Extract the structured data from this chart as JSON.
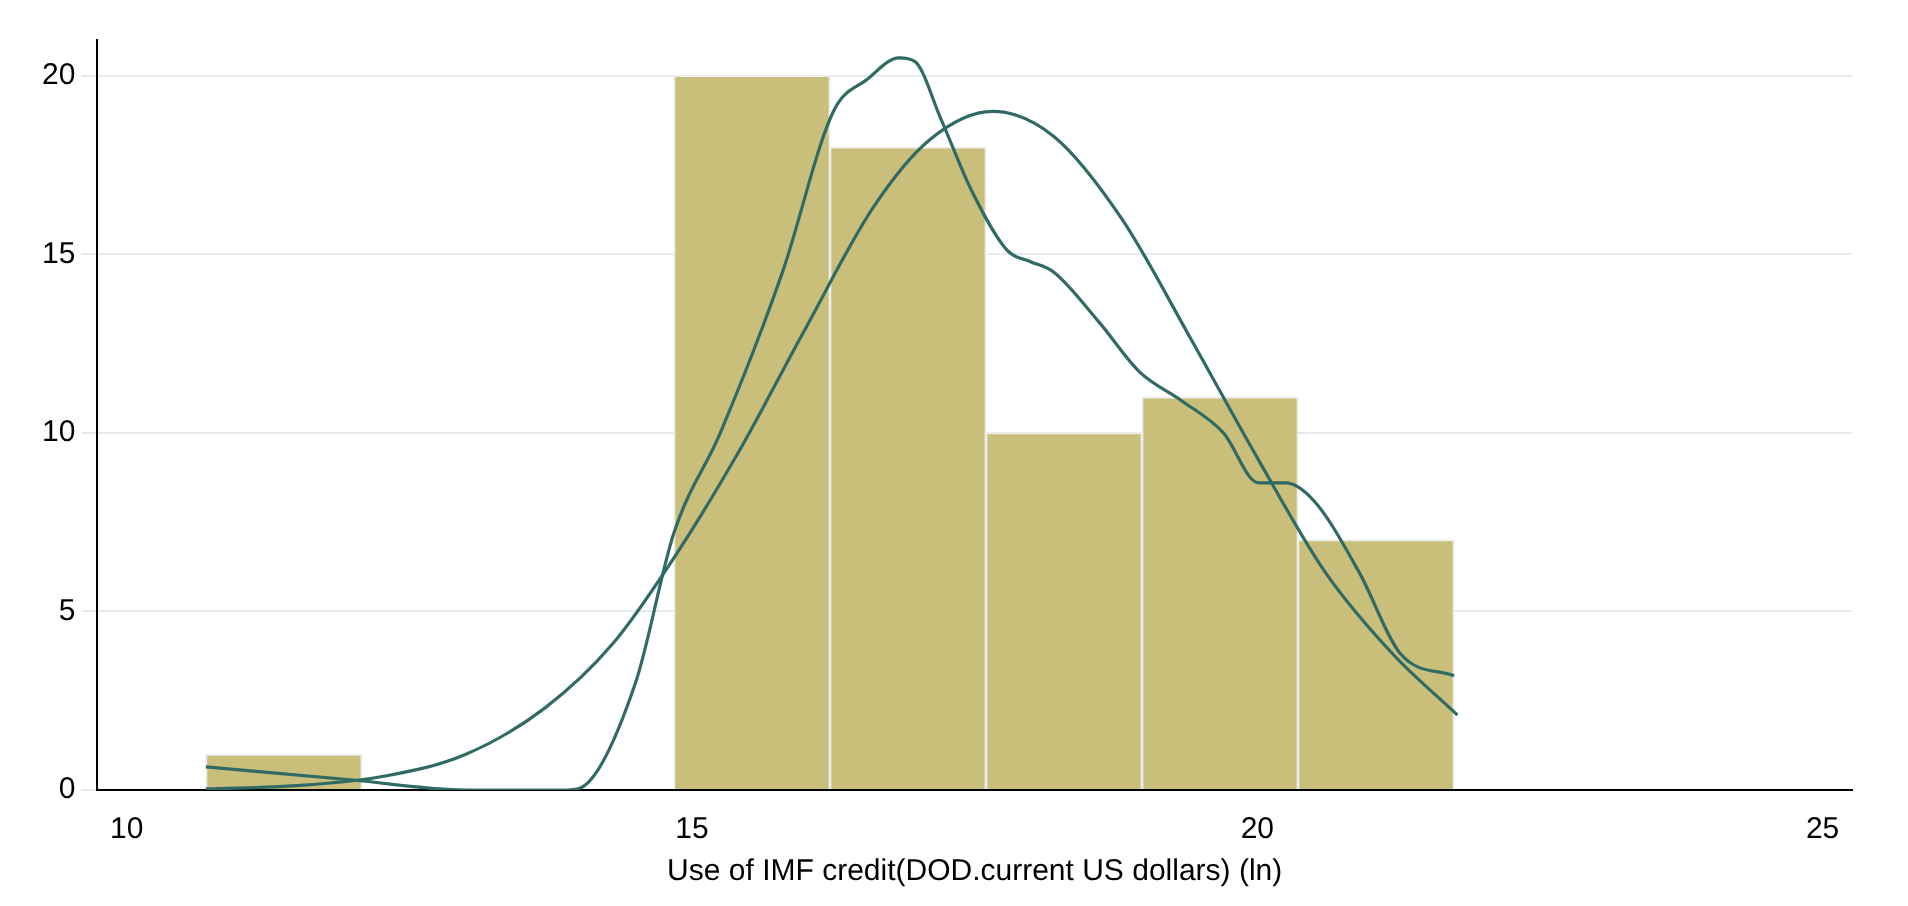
{
  "chart_data": {
    "type": "histogram",
    "xlabel": "Use of IMF credit(DOD.current US dollars) (ln)",
    "bins": [
      10.7,
      12.08,
      13.46,
      14.84,
      16.22,
      17.6,
      18.98,
      20.36,
      21.74
    ],
    "values": [
      1,
      0,
      0,
      20,
      18,
      10,
      11,
      7
    ],
    "color": "#c9bf7b",
    "series": [
      {
        "type": "line",
        "color": "#2f6b64",
        "x": [
          10.7,
          12,
          13,
          13.9,
          14.04,
          14.5,
          14.84,
          15.25,
          15.8,
          16.25,
          16.55,
          16.83,
          16.97,
          17.2,
          17.47,
          17.79,
          17.99,
          18.2,
          18.6,
          18.96,
          19.33,
          19.7,
          20.01,
          20.25,
          20.5,
          20.9,
          21.27,
          21.74
        ],
        "values": [
          0.65,
          0.28,
          0,
          0,
          0.1,
          3,
          7.2,
          10,
          14.5,
          19,
          19.9,
          20.5,
          20.4,
          18.8,
          16.8,
          15.1,
          14.8,
          14.5,
          13.1,
          11.7,
          10.9,
          10,
          8.6,
          8.6,
          8.1,
          6.1,
          3.8,
          3.2
        ]
      },
      {
        "type": "line",
        "color": "#2f6b64",
        "x": [
          10.7,
          11.5,
          12.3,
          13,
          13.7,
          14.3,
          14.84,
          15.4,
          16,
          16.6,
          17.1,
          17.66,
          18.2,
          18.8,
          19.4,
          20,
          20.6,
          21.2,
          21.77
        ],
        "values": [
          0.03,
          0.12,
          0.4,
          1,
          2.3,
          4.1,
          6.5,
          9.4,
          12.9,
          16.3,
          18.2,
          19,
          18.3,
          16,
          12.7,
          9.3,
          6.1,
          3.8,
          2.1
        ]
      }
    ],
    "xlim": [
      9.74,
      25.26
    ],
    "xticks": [
      10,
      15,
      20,
      25
    ],
    "ylim": [
      0,
      21
    ],
    "yticks": [
      0,
      5,
      10,
      15,
      20
    ],
    "grid": "y",
    "legend": false
  }
}
